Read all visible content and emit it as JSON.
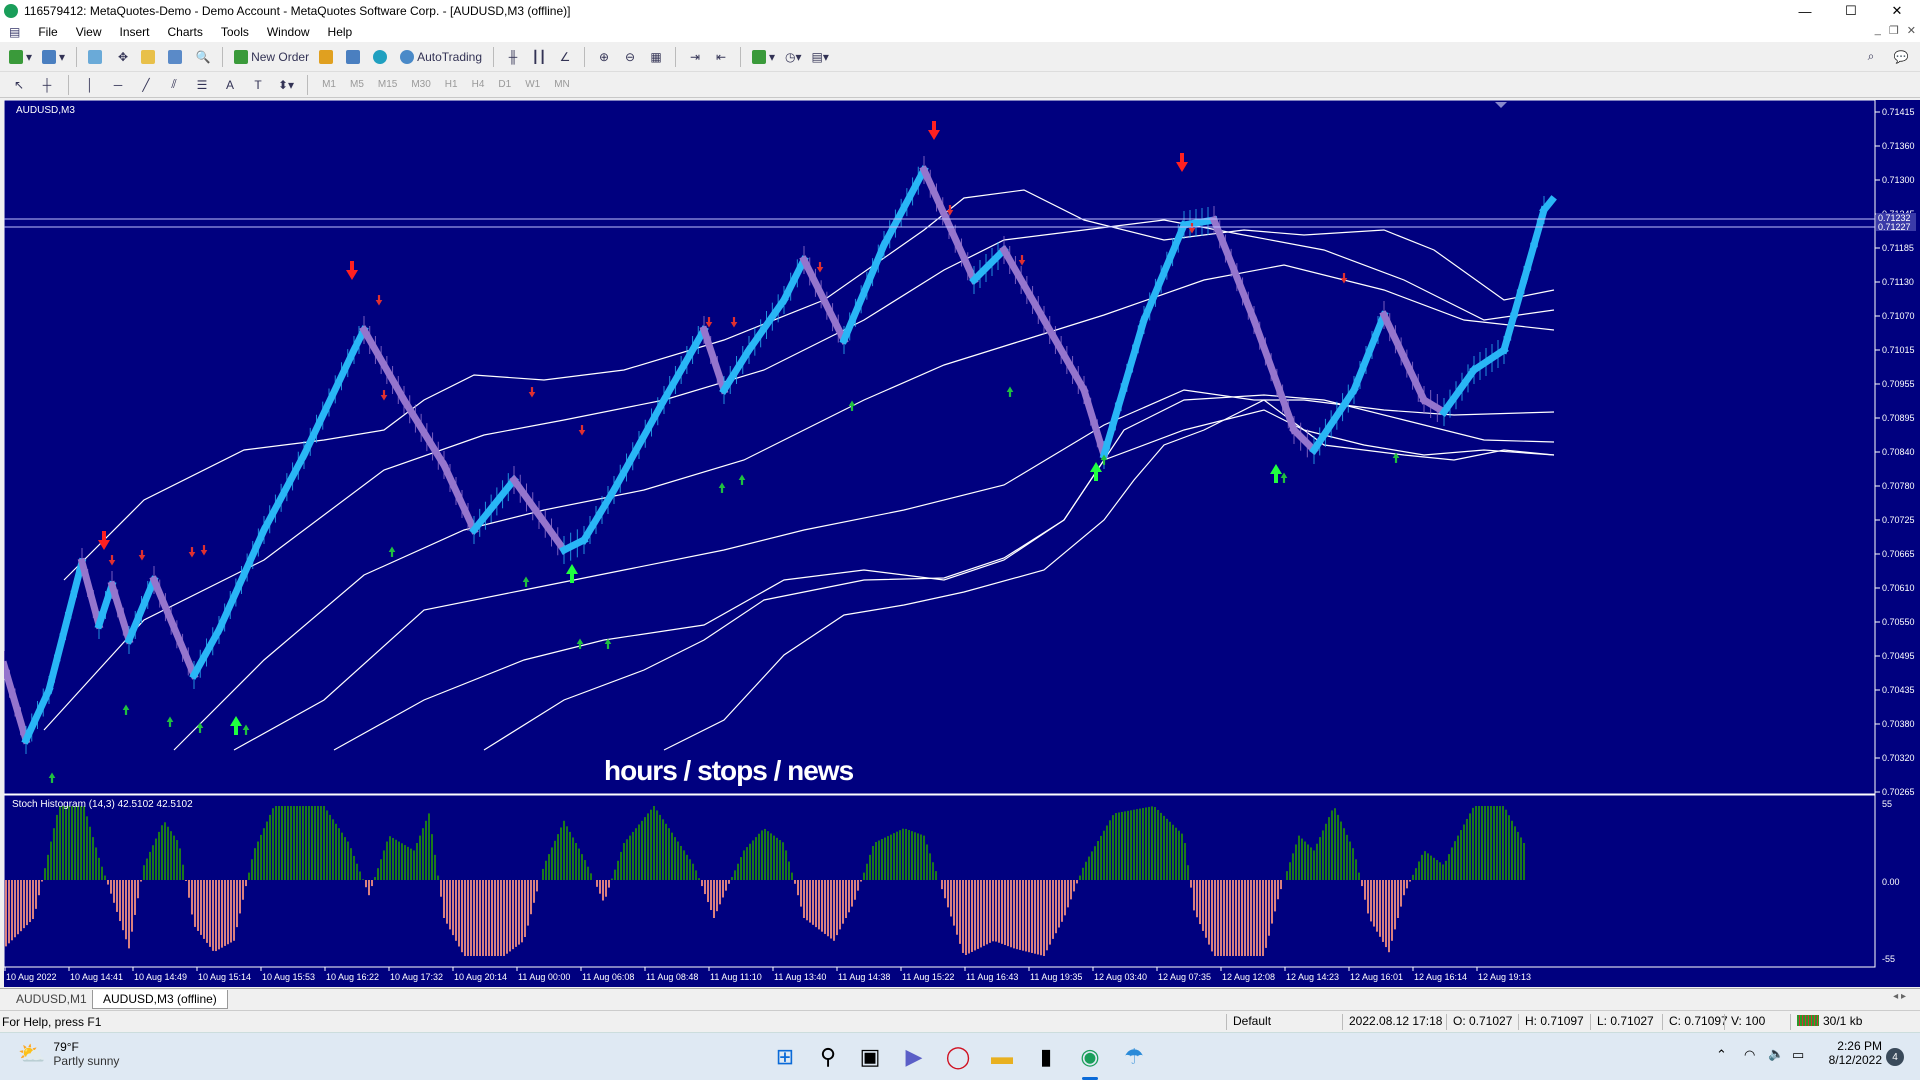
{
  "window": {
    "title": "116579412: MetaQuotes-Demo - Demo Account - MetaQuotes Software Corp. - [AUDUSD,M3 (offline)]",
    "controls": [
      "—",
      "☐",
      "✕"
    ]
  },
  "menu": {
    "items": [
      "File",
      "View",
      "Insert",
      "Charts",
      "Tools",
      "Window",
      "Help"
    ],
    "mdi": [
      "_",
      "❐",
      "✕"
    ]
  },
  "toolbar": {
    "new_order": "New Order",
    "auto_trading": "AutoTrading"
  },
  "timeframes": [
    "M1",
    "M5",
    "M15",
    "M30",
    "H1",
    "H4",
    "D1",
    "W1",
    "MN"
  ],
  "chart": {
    "symbol_label": "AUDUSD,M3",
    "overlay_text": "hours / stops / news",
    "price_labels": [
      "0.71415",
      "0.71360",
      "0.71300",
      "0.71245",
      "0.71185",
      "0.71130",
      "0.71070",
      "0.71015",
      "0.70955",
      "0.70895",
      "0.70840",
      "0.70780",
      "0.70725",
      "0.70665",
      "0.70610",
      "0.70550",
      "0.70495",
      "0.70435",
      "0.70380",
      "0.70320",
      "0.70265"
    ],
    "bid_label": "0.71232",
    "ask_label": "0.71227",
    "indicator_label": "Stoch Histogram (14,3) 42.5102 42.5102",
    "ind_scale": [
      "55",
      "0.00",
      "-55"
    ],
    "time_labels": [
      "10 Aug 2022",
      "10 Aug 14:41",
      "10 Aug 14:49",
      "10 Aug 15:14",
      "10 Aug 15:53",
      "10 Aug 16:22",
      "10 Aug 17:32",
      "10 Aug 20:14",
      "11 Aug 00:00",
      "11 Aug 06:08",
      "11 Aug 08:48",
      "11 Aug 11:10",
      "11 Aug 13:40",
      "11 Aug 14:38",
      "11 Aug 15:22",
      "11 Aug 16:43",
      "11 Aug 19:35",
      "12 Aug 03:40",
      "12 Aug 07:35",
      "12 Aug 12:08",
      "12 Aug 14:23",
      "12 Aug 16:01",
      "12 Aug 16:14",
      "12 Aug 19:13"
    ],
    "colors": {
      "background": "#00007f",
      "up": "#29b6f6",
      "down": "#9575cd",
      "band": "#ffffff",
      "hist_pos": "#1b7a1b",
      "hist_neg": "#d98080"
    }
  },
  "tabs": [
    "AUDUSD,M1",
    "AUDUSD,M3 (offline)"
  ],
  "status": {
    "help": "For Help, press F1",
    "profile": "Default",
    "datetime": "2022.08.12 17:18",
    "open": "O: 0.71027",
    "high": "H: 0.71097",
    "low": "L: 0.71027",
    "close": "C: 0.71097",
    "volume": "V: 100",
    "traffic": "30/1 kb"
  },
  "taskbar": {
    "weather_temp": "79°F",
    "weather_desc": "Partly sunny",
    "time": "2:26 PM",
    "date": "8/12/2022",
    "badge": "4"
  }
}
